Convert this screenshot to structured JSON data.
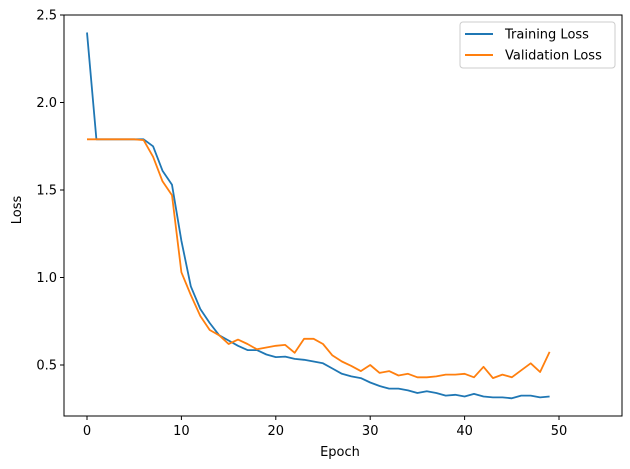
{
  "chart_data": {
    "type": "line",
    "title": "",
    "xlabel": "Epoch",
    "ylabel": "Loss",
    "xlim": [
      -2.45,
      51.45
    ],
    "ylim": [
      0.22,
      2.52
    ],
    "xticks": [
      0,
      10,
      20,
      30,
      40,
      50
    ],
    "yticks": [
      0.5,
      1.0,
      1.5,
      2.0,
      2.5
    ],
    "xtick_labels": [
      "0",
      "10",
      "20",
      "30",
      "40",
      "50"
    ],
    "ytick_labels": [
      "0.5",
      "1.0",
      "1.5",
      "2.0",
      "2.5"
    ],
    "grid": false,
    "legend_position": "upper right",
    "x": [
      0,
      1,
      2,
      3,
      4,
      5,
      6,
      7,
      8,
      9,
      10,
      11,
      12,
      13,
      14,
      15,
      16,
      17,
      18,
      19,
      20,
      21,
      22,
      23,
      24,
      25,
      26,
      27,
      28,
      29,
      30,
      31,
      32,
      33,
      34,
      35,
      36,
      37,
      38,
      39,
      40,
      41,
      42,
      43,
      44,
      45,
      46,
      47,
      48,
      49
    ],
    "series": [
      {
        "name": "Training Loss",
        "color": "#1f77b4",
        "values": [
          2.4,
          1.79,
          1.79,
          1.79,
          1.79,
          1.79,
          1.79,
          1.75,
          1.61,
          1.53,
          1.21,
          0.95,
          0.82,
          0.74,
          0.67,
          0.64,
          0.61,
          0.585,
          0.585,
          0.56,
          0.545,
          0.548,
          0.535,
          0.53,
          0.52,
          0.51,
          0.48,
          0.45,
          0.435,
          0.425,
          0.4,
          0.38,
          0.365,
          0.365,
          0.355,
          0.34,
          0.35,
          0.34,
          0.325,
          0.33,
          0.32,
          0.335,
          0.32,
          0.315,
          0.315,
          0.31,
          0.325,
          0.325,
          0.315,
          0.32
        ]
      },
      {
        "name": "Validation Loss",
        "color": "#ff7f0e",
        "values": [
          1.79,
          1.79,
          1.79,
          1.79,
          1.79,
          1.79,
          1.785,
          1.69,
          1.55,
          1.47,
          1.03,
          0.9,
          0.78,
          0.7,
          0.67,
          0.62,
          0.645,
          0.62,
          0.59,
          0.6,
          0.61,
          0.615,
          0.57,
          0.65,
          0.65,
          0.62,
          0.555,
          0.52,
          0.495,
          0.465,
          0.5,
          0.455,
          0.465,
          0.44,
          0.45,
          0.43,
          0.43,
          0.435,
          0.445,
          0.445,
          0.45,
          0.43,
          0.49,
          0.425,
          0.445,
          0.43,
          0.47,
          0.51,
          0.46,
          0.575
        ]
      }
    ]
  },
  "legend": {
    "items": [
      {
        "label": "Training Loss",
        "color": "#1f77b4"
      },
      {
        "label": "Validation Loss",
        "color": "#ff7f0e"
      }
    ]
  }
}
